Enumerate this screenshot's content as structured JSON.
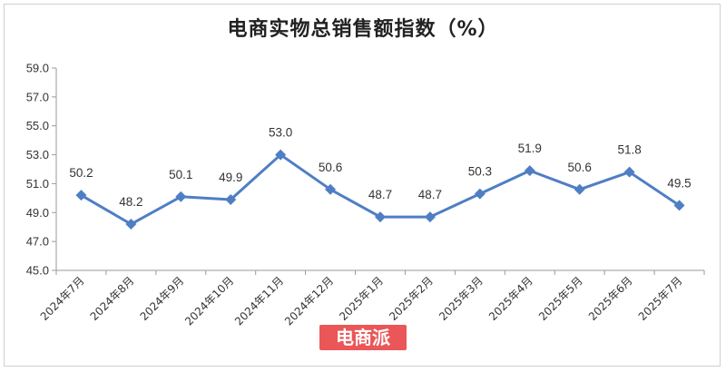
{
  "chart_data": {
    "type": "line",
    "title": "电商实物总销售额指数（%）",
    "categories": [
      "2024年7月",
      "2024年8月",
      "2024年9月",
      "2024年10月",
      "2024年11月",
      "2024年12月",
      "2025年1月",
      "2025年2月",
      "2025年3月",
      "2025年4月",
      "2025年5月",
      "2025年6月",
      "2025年7月"
    ],
    "series": [
      {
        "values": [
          50.2,
          48.2,
          50.1,
          49.9,
          53.0,
          50.6,
          48.7,
          48.7,
          50.3,
          51.9,
          50.6,
          51.8,
          49.5
        ]
      }
    ],
    "data_labels": [
      "50.2",
      "48.2",
      "50.1",
      "49.9",
      "53.0",
      "50.6",
      "48.7",
      "48.7",
      "50.3",
      "51.9",
      "50.6",
      "51.8",
      "49.5"
    ],
    "yticks": [
      "45.0",
      "47.0",
      "49.0",
      "51.0",
      "53.0",
      "55.0",
      "57.0",
      "59.0"
    ],
    "ylim": [
      45,
      59
    ],
    "grid": false,
    "line_color": "#4f7ec4"
  },
  "watermark": {
    "text": "电商派"
  }
}
